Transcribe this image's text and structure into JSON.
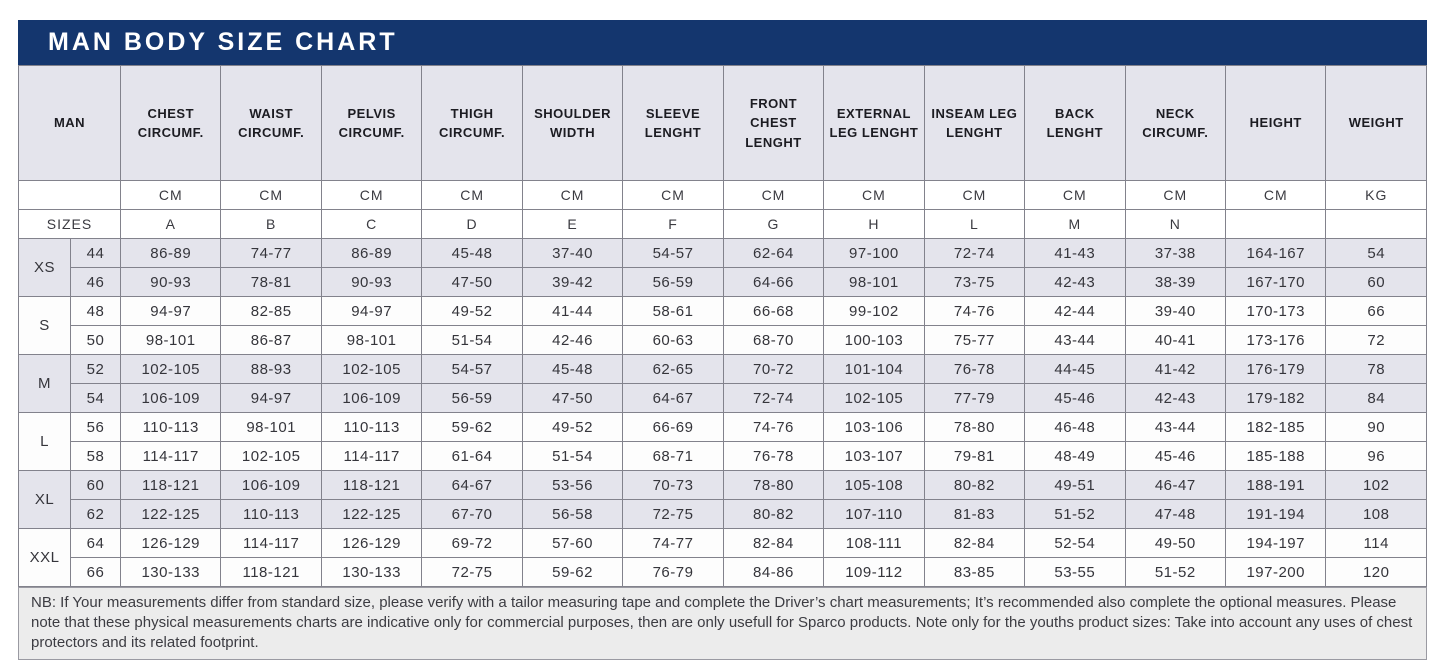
{
  "title": "MAN BODY SIZE CHART",
  "colors": {
    "header_bg": "#14366e",
    "header_text": "#ffffff",
    "shaded_row": "#e4e4ec",
    "white_row": "#fdfdfd",
    "grid_border": "#82828c",
    "note_bg": "#ececec"
  },
  "table": {
    "columns": [
      "MAN",
      "CHEST CIRCUMF.",
      "WAIST CIRCUMF.",
      "PELVIS CIRCUMF.",
      "THIGH CIRCUMF.",
      "SHOULDER WIDTH",
      "SLEEVE LENGHT",
      "FRONT CHEST LENGHT",
      "EXTERNAL LEG LENGHT",
      "INSEAM LEG LENGHT",
      "BACK LENGHT",
      "NECK CIRCUMF.",
      "HEIGHT",
      "WEIGHT"
    ],
    "units": [
      "",
      "CM",
      "CM",
      "CM",
      "CM",
      "CM",
      "CM",
      "CM",
      "CM",
      "CM",
      "CM",
      "CM",
      "CM",
      "KG"
    ],
    "sizes_label": "SIZES",
    "letters": [
      "A",
      "B",
      "C",
      "D",
      "E",
      "F",
      "G",
      "H",
      "L",
      "M",
      "N",
      "",
      ""
    ],
    "groups": [
      {
        "label": "XS",
        "shaded": true,
        "rows": [
          {
            "size": "44",
            "values": [
              "86-89",
              "74-77",
              "86-89",
              "45-48",
              "37-40",
              "54-57",
              "62-64",
              "97-100",
              "72-74",
              "41-43",
              "37-38",
              "164-167",
              "54"
            ]
          },
          {
            "size": "46",
            "values": [
              "90-93",
              "78-81",
              "90-93",
              "47-50",
              "39-42",
              "56-59",
              "64-66",
              "98-101",
              "73-75",
              "42-43",
              "38-39",
              "167-170",
              "60"
            ]
          }
        ]
      },
      {
        "label": "S",
        "shaded": false,
        "rows": [
          {
            "size": "48",
            "values": [
              "94-97",
              "82-85",
              "94-97",
              "49-52",
              "41-44",
              "58-61",
              "66-68",
              "99-102",
              "74-76",
              "42-44",
              "39-40",
              "170-173",
              "66"
            ]
          },
          {
            "size": "50",
            "values": [
              "98-101",
              "86-87",
              "98-101",
              "51-54",
              "42-46",
              "60-63",
              "68-70",
              "100-103",
              "75-77",
              "43-44",
              "40-41",
              "173-176",
              "72"
            ]
          }
        ]
      },
      {
        "label": "M",
        "shaded": true,
        "rows": [
          {
            "size": "52",
            "values": [
              "102-105",
              "88-93",
              "102-105",
              "54-57",
              "45-48",
              "62-65",
              "70-72",
              "101-104",
              "76-78",
              "44-45",
              "41-42",
              "176-179",
              "78"
            ]
          },
          {
            "size": "54",
            "values": [
              "106-109",
              "94-97",
              "106-109",
              "56-59",
              "47-50",
              "64-67",
              "72-74",
              "102-105",
              "77-79",
              "45-46",
              "42-43",
              "179-182",
              "84"
            ]
          }
        ]
      },
      {
        "label": "L",
        "shaded": false,
        "rows": [
          {
            "size": "56",
            "values": [
              "110-113",
              "98-101",
              "110-113",
              "59-62",
              "49-52",
              "66-69",
              "74-76",
              "103-106",
              "78-80",
              "46-48",
              "43-44",
              "182-185",
              "90"
            ]
          },
          {
            "size": "58",
            "values": [
              "114-117",
              "102-105",
              "114-117",
              "61-64",
              "51-54",
              "68-71",
              "76-78",
              "103-107",
              "79-81",
              "48-49",
              "45-46",
              "185-188",
              "96"
            ]
          }
        ]
      },
      {
        "label": "XL",
        "shaded": true,
        "rows": [
          {
            "size": "60",
            "values": [
              "118-121",
              "106-109",
              "118-121",
              "64-67",
              "53-56",
              "70-73",
              "78-80",
              "105-108",
              "80-82",
              "49-51",
              "46-47",
              "188-191",
              "102"
            ]
          },
          {
            "size": "62",
            "values": [
              "122-125",
              "110-113",
              "122-125",
              "67-70",
              "56-58",
              "72-75",
              "80-82",
              "107-110",
              "81-83",
              "51-52",
              "47-48",
              "191-194",
              "108"
            ]
          }
        ]
      },
      {
        "label": "XXL",
        "shaded": false,
        "rows": [
          {
            "size": "64",
            "values": [
              "126-129",
              "114-117",
              "126-129",
              "69-72",
              "57-60",
              "74-77",
              "82-84",
              "108-111",
              "82-84",
              "52-54",
              "49-50",
              "194-197",
              "114"
            ]
          },
          {
            "size": "66",
            "values": [
              "130-133",
              "118-121",
              "130-133",
              "72-75",
              "59-62",
              "76-79",
              "84-86",
              "109-112",
              "83-85",
              "53-55",
              "51-52",
              "197-200",
              "120"
            ]
          }
        ]
      }
    ]
  },
  "note": "NB: If Your measurements differ from standard size, please verify with a tailor measuring tape and complete the Driver’s chart measurements; It’s recommended also complete the optional measures. Please note that these physical measurements charts are indicative only for commercial purposes, then are only usefull for Sparco products. Note only for the youths product sizes: Take into account any uses of chest protectors and its related footprint."
}
